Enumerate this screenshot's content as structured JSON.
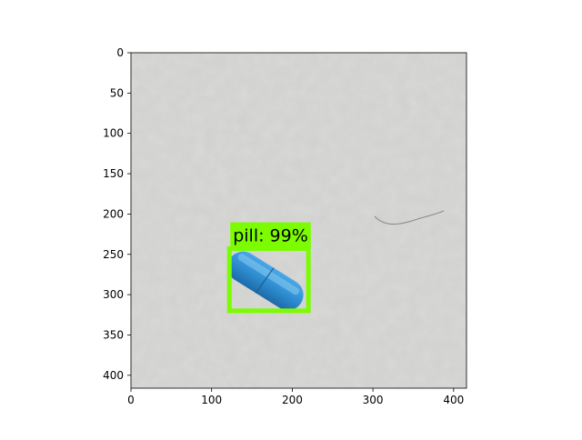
{
  "image_axes": {
    "x_range": [
      0,
      416
    ],
    "y_range": [
      0,
      416
    ],
    "y_inverted": true,
    "xticks": [
      0,
      100,
      200,
      300,
      400
    ],
    "yticks": [
      0,
      50,
      100,
      150,
      200,
      250,
      300,
      350,
      400
    ]
  },
  "detections": [
    {
      "label_text": "pill: 99%",
      "box": {
        "x1": 122,
        "y1": 243,
        "x2": 220,
        "y2": 320
      },
      "color": "#7CFC00"
    }
  ],
  "image_colors": {
    "background": "#cfcfcd",
    "pill": "#2f8fd2"
  }
}
